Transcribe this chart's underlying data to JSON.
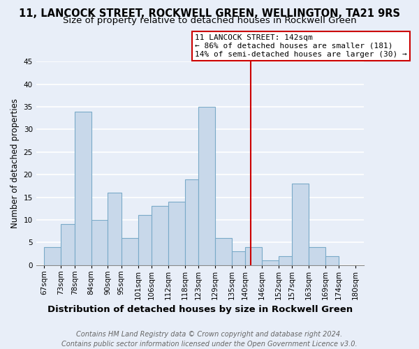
{
  "title1": "11, LANCOCK STREET, ROCKWELL GREEN, WELLINGTON, TA21 9RS",
  "title2": "Size of property relative to detached houses in Rockwell Green",
  "xlabel": "Distribution of detached houses by size in Rockwell Green",
  "ylabel": "Number of detached properties",
  "bar_values": [
    4,
    9,
    34,
    10,
    16,
    6,
    11,
    13,
    14,
    19,
    35,
    6,
    3,
    4,
    1,
    2,
    18,
    4,
    2
  ],
  "bar_left_edges": [
    67,
    73,
    78,
    84,
    90,
    95,
    101,
    106,
    112,
    118,
    123,
    129,
    135,
    140,
    146,
    152,
    157,
    163,
    169
  ],
  "bar_widths": [
    6,
    5,
    6,
    6,
    5,
    6,
    5,
    6,
    6,
    5,
    6,
    6,
    5,
    6,
    6,
    5,
    6,
    6,
    5
  ],
  "tick_positions": [
    67,
    73,
    78,
    84,
    90,
    95,
    101,
    106,
    112,
    118,
    123,
    129,
    135,
    140,
    146,
    152,
    157,
    163,
    169,
    174,
    180
  ],
  "tick_labels": [
    "67sqm",
    "73sqm",
    "78sqm",
    "84sqm",
    "90sqm",
    "95sqm",
    "101sqm",
    "106sqm",
    "112sqm",
    "118sqm",
    "123sqm",
    "129sqm",
    "135sqm",
    "140sqm",
    "146sqm",
    "152sqm",
    "157sqm",
    "163sqm",
    "169sqm",
    "174sqm",
    "180sqm"
  ],
  "bar_color": "#c8d8ea",
  "bar_edge_color": "#7aaac8",
  "red_line_x": 142,
  "red_line_color": "#cc0000",
  "annotation_line1": "11 LANCOCK STREET: 142sqm",
  "annotation_line2": "← 86% of detached houses are smaller (181)",
  "annotation_line3": "14% of semi-detached houses are larger (30) →",
  "ylim": [
    0,
    45
  ],
  "yticks": [
    0,
    5,
    10,
    15,
    20,
    25,
    30,
    35,
    40,
    45
  ],
  "background_color": "#e8eef8",
  "grid_color": "#ffffff",
  "footer_text": "Contains HM Land Registry data © Crown copyright and database right 2024.\nContains public sector information licensed under the Open Government Licence v3.0.",
  "title1_fontsize": 10.5,
  "title2_fontsize": 9.5,
  "xlabel_fontsize": 9.5,
  "ylabel_fontsize": 8.5,
  "tick_fontsize": 7.5,
  "annotation_fontsize": 8.0,
  "footer_fontsize": 7.0
}
